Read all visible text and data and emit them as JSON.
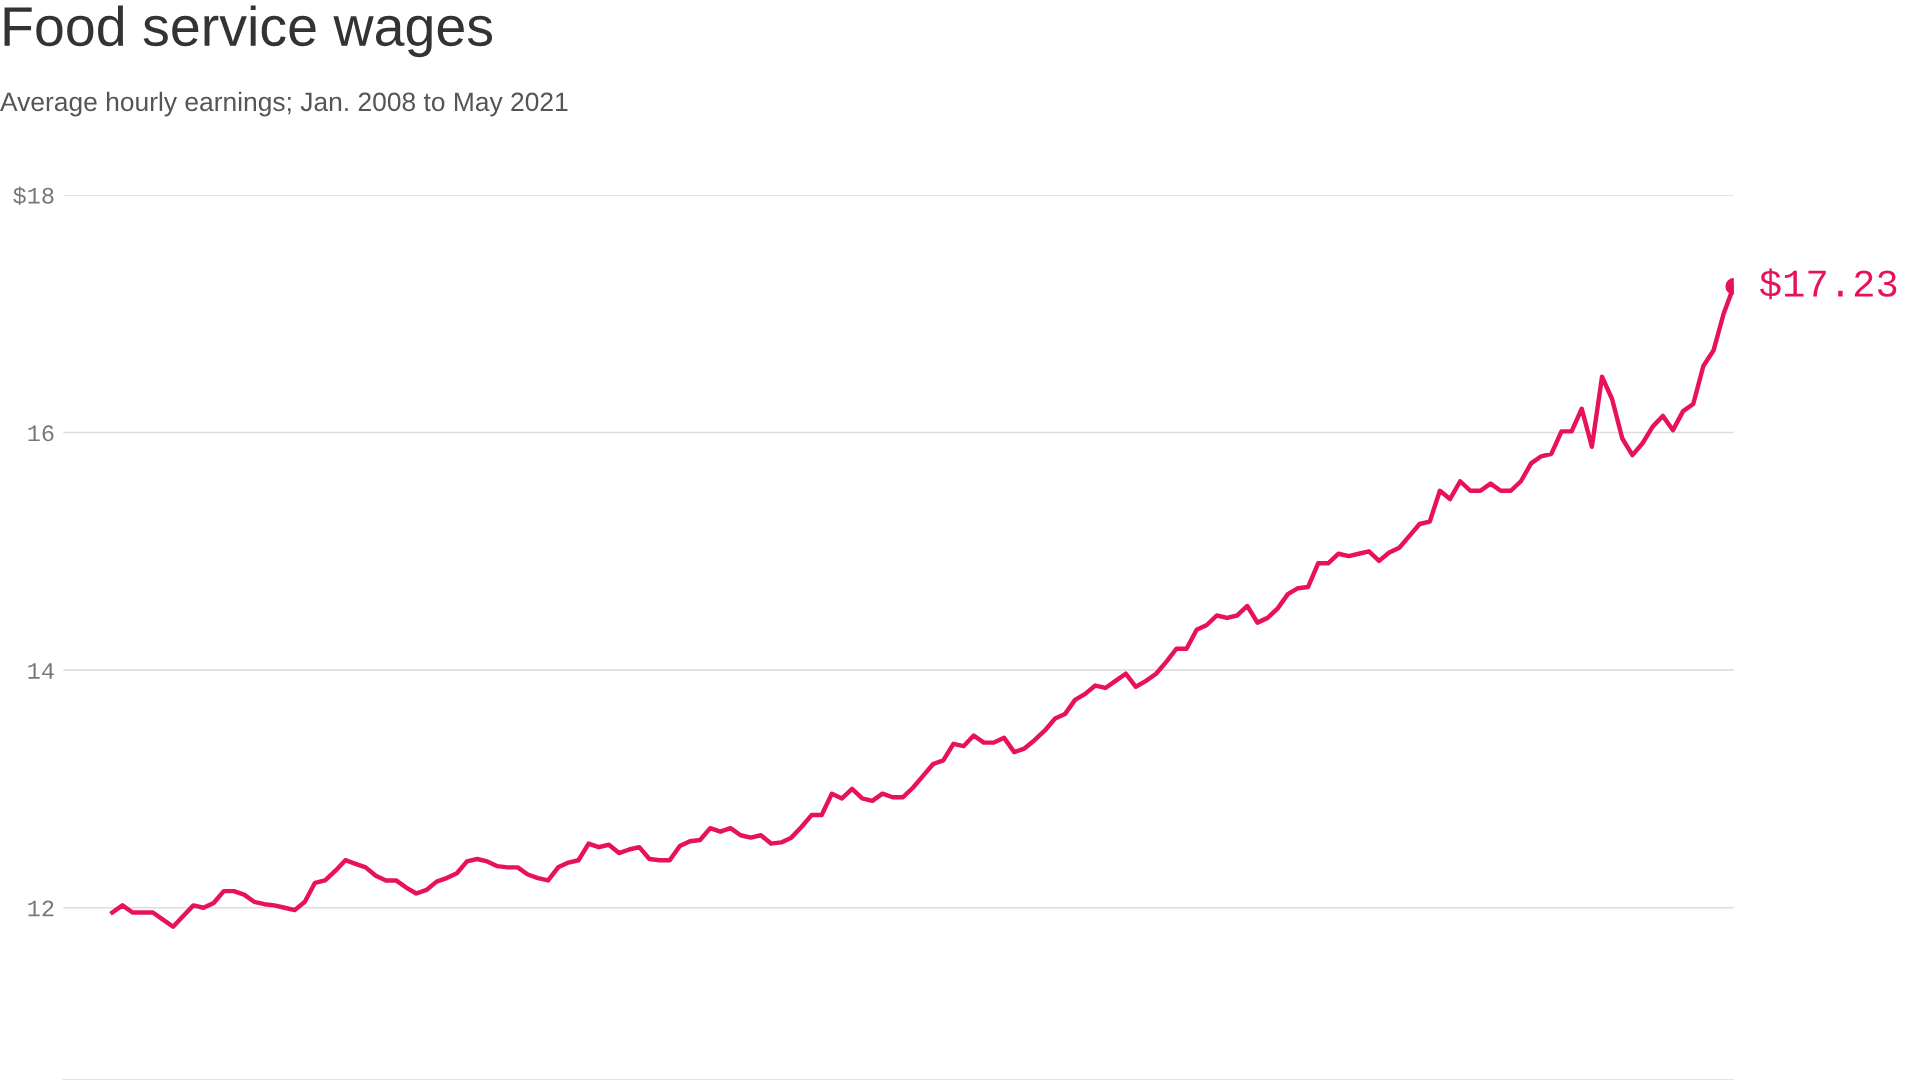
{
  "chart_data": {
    "type": "line",
    "title": "Food service wages",
    "subtitle": "Average hourly earnings; Jan. 2008 to May 2021",
    "categories": [
      null,
      null,
      null,
      null,
      null,
      null,
      null,
      null,
      null,
      null,
      null,
      null,
      null,
      null,
      null,
      null,
      null,
      null,
      null,
      null,
      null,
      null,
      null,
      null,
      null,
      null,
      null,
      null,
      null,
      null,
      null,
      null,
      null,
      null,
      null,
      null,
      null,
      null,
      null,
      null,
      null,
      null,
      null,
      null,
      null,
      null,
      null,
      null,
      null,
      null,
      null,
      null,
      null,
      null,
      null,
      null,
      null,
      null,
      null,
      null,
      null,
      null,
      null,
      null,
      null,
      null,
      null,
      null,
      null,
      null,
      null,
      null,
      null,
      null,
      null,
      null,
      null,
      null,
      null,
      null,
      null,
      null,
      null,
      null,
      null,
      null,
      null,
      null,
      null,
      null,
      null,
      null,
      null,
      null,
      null,
      null,
      null,
      null,
      null,
      null,
      null,
      null,
      null,
      null,
      null,
      null,
      null,
      null,
      null,
      null,
      null,
      null,
      null,
      null,
      null,
      null,
      null,
      null,
      null,
      null,
      null,
      null,
      null,
      null,
      null,
      null,
      null,
      null,
      null,
      null,
      null,
      null,
      null,
      null,
      null,
      null,
      null,
      null,
      null,
      null,
      null,
      null,
      null,
      null,
      null,
      null,
      null,
      null,
      null,
      null,
      null,
      null,
      null,
      null,
      null,
      null,
      null,
      null,
      null,
      null,
      null
    ],
    "series": [
      {
        "color": "#e8115b",
        "values": [
          11.96,
          12.02,
          11.96,
          11.96,
          11.96,
          11.9,
          11.84,
          11.93,
          12.02,
          12.0,
          12.04,
          12.14,
          12.14,
          12.11,
          12.05,
          12.03,
          12.02,
          12.0,
          11.98,
          12.05,
          12.21,
          12.23,
          12.31,
          12.4,
          12.37,
          12.34,
          12.27,
          12.23,
          12.23,
          12.17,
          12.12,
          12.15,
          12.22,
          12.25,
          12.29,
          12.39,
          12.41,
          12.39,
          12.35,
          12.34,
          12.34,
          12.28,
          12.25,
          12.23,
          12.34,
          12.38,
          12.4,
          12.54,
          12.51,
          12.53,
          12.46,
          12.49,
          12.51,
          12.41,
          12.4,
          12.4,
          12.52,
          12.56,
          12.57,
          12.67,
          12.64,
          12.67,
          12.61,
          12.59,
          12.61,
          12.54,
          12.55,
          12.59,
          12.68,
          12.78,
          12.78,
          12.96,
          12.92,
          13.0,
          12.92,
          12.9,
          12.96,
          12.93,
          12.93,
          13.01,
          13.11,
          13.21,
          13.24,
          13.38,
          13.36,
          13.45,
          13.39,
          13.39,
          13.43,
          13.31,
          13.34,
          13.41,
          13.49,
          13.59,
          13.63,
          13.75,
          13.8,
          13.87,
          13.85,
          13.91,
          13.97,
          13.86,
          13.91,
          13.97,
          14.07,
          14.18,
          14.18,
          14.34,
          14.38,
          14.46,
          14.44,
          14.46,
          14.54,
          14.4,
          14.44,
          14.52,
          14.64,
          14.69,
          14.7,
          14.9,
          14.9,
          14.98,
          14.96,
          14.98,
          15.0,
          14.92,
          14.99,
          15.03,
          15.13,
          15.23,
          15.25,
          15.51,
          15.44,
          15.59,
          15.51,
          15.51,
          15.57,
          15.51,
          15.51,
          15.59,
          15.74,
          15.8,
          15.82,
          16.01,
          16.01,
          16.2,
          15.88,
          16.47,
          16.28,
          15.95,
          15.81,
          15.91,
          16.05,
          16.14,
          16.02,
          16.18,
          16.24,
          16.56,
          16.69,
          17.0,
          17.23
        ]
      }
    ],
    "ylim": [
      10.55,
      18
    ],
    "yticks": [
      12,
      14,
      16,
      {
        "value": 18,
        "label": "$18"
      }
    ],
    "tick_labels": "y",
    "grid": "y",
    "marker": "none",
    "line_style": "solid",
    "annotations": [
      "$17.23"
    ]
  }
}
